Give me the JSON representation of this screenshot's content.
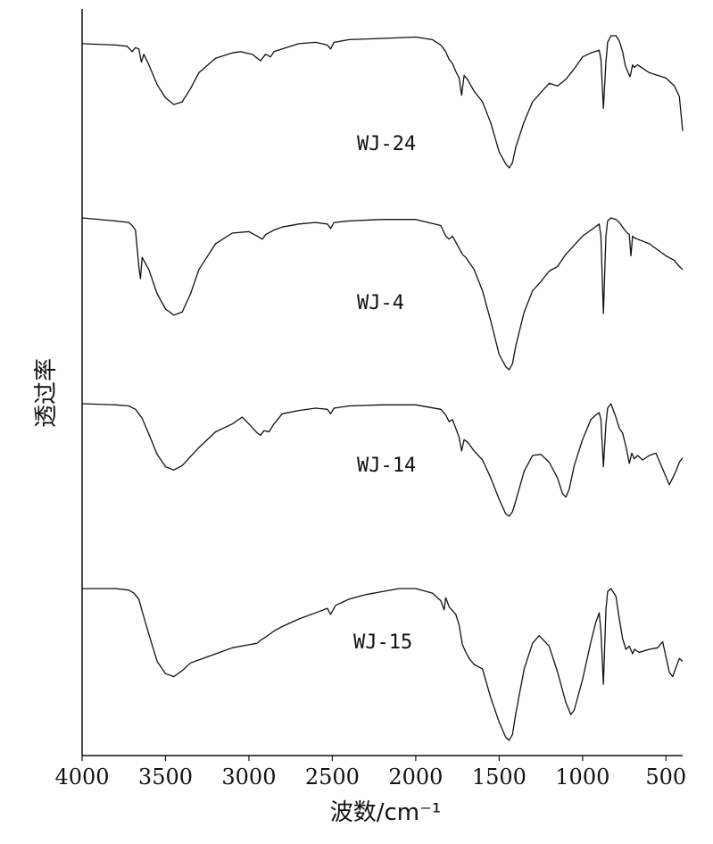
{
  "chart_data": {
    "type": "line",
    "title": "",
    "xlabel": "波数/cm⁻¹",
    "ylabel": "透过率",
    "xlim": [
      4000,
      400
    ],
    "x_reversed": true,
    "x_ticks": [
      4000,
      3500,
      3000,
      2500,
      2000,
      1500,
      1000,
      500
    ],
    "grid": false,
    "legend": "none",
    "series": [
      {
        "name": "WJ-24",
        "points": [
          [
            4000,
            0.06
          ],
          [
            3800,
            0.07
          ],
          [
            3730,
            0.08
          ],
          [
            3700,
            0.12
          ],
          [
            3680,
            0.09
          ],
          [
            3660,
            0.1
          ],
          [
            3645,
            0.2
          ],
          [
            3630,
            0.14
          ],
          [
            3600,
            0.22
          ],
          [
            3550,
            0.37
          ],
          [
            3500,
            0.47
          ],
          [
            3450,
            0.52
          ],
          [
            3400,
            0.5
          ],
          [
            3350,
            0.4
          ],
          [
            3300,
            0.28
          ],
          [
            3200,
            0.17
          ],
          [
            3100,
            0.13
          ],
          [
            3050,
            0.12
          ],
          [
            3020,
            0.13
          ],
          [
            2980,
            0.14
          ],
          [
            2950,
            0.17
          ],
          [
            2930,
            0.19
          ],
          [
            2900,
            0.14
          ],
          [
            2870,
            0.16
          ],
          [
            2850,
            0.12
          ],
          [
            2800,
            0.1
          ],
          [
            2700,
            0.06
          ],
          [
            2600,
            0.05
          ],
          [
            2530,
            0.07
          ],
          [
            2510,
            0.1
          ],
          [
            2490,
            0.05
          ],
          [
            2400,
            0.03
          ],
          [
            2200,
            0.02
          ],
          [
            2000,
            0.01
          ],
          [
            1900,
            0.03
          ],
          [
            1850,
            0.07
          ],
          [
            1820,
            0.12
          ],
          [
            1800,
            0.18
          ],
          [
            1780,
            0.21
          ],
          [
            1760,
            0.27
          ],
          [
            1740,
            0.32
          ],
          [
            1725,
            0.45
          ],
          [
            1710,
            0.3
          ],
          [
            1690,
            0.33
          ],
          [
            1650,
            0.42
          ],
          [
            1600,
            0.5
          ],
          [
            1550,
            0.66
          ],
          [
            1500,
            0.88
          ],
          [
            1460,
            0.97
          ],
          [
            1440,
            1.0
          ],
          [
            1420,
            0.96
          ],
          [
            1400,
            0.84
          ],
          [
            1350,
            0.65
          ],
          [
            1300,
            0.5
          ],
          [
            1250,
            0.43
          ],
          [
            1200,
            0.36
          ],
          [
            1150,
            0.38
          ],
          [
            1100,
            0.33
          ],
          [
            1050,
            0.25
          ],
          [
            1000,
            0.16
          ],
          [
            950,
            0.13
          ],
          [
            900,
            0.11
          ],
          [
            890,
            0.18
          ],
          [
            875,
            0.55
          ],
          [
            860,
            0.2
          ],
          [
            850,
            0.05
          ],
          [
            830,
            0.0
          ],
          [
            800,
            0.0
          ],
          [
            780,
            0.04
          ],
          [
            760,
            0.12
          ],
          [
            745,
            0.22
          ],
          [
            730,
            0.27
          ],
          [
            715,
            0.31
          ],
          [
            700,
            0.22
          ],
          [
            690,
            0.24
          ],
          [
            670,
            0.22
          ],
          [
            600,
            0.28
          ],
          [
            500,
            0.32
          ],
          [
            450,
            0.38
          ],
          [
            420,
            0.46
          ],
          [
            400,
            0.72
          ]
        ]
      },
      {
        "name": "WJ-4",
        "points": [
          [
            4000,
            0.0
          ],
          [
            3800,
            0.02
          ],
          [
            3720,
            0.03
          ],
          [
            3700,
            0.05
          ],
          [
            3680,
            0.08
          ],
          [
            3660,
            0.32
          ],
          [
            3650,
            0.4
          ],
          [
            3640,
            0.26
          ],
          [
            3600,
            0.34
          ],
          [
            3550,
            0.5
          ],
          [
            3500,
            0.6
          ],
          [
            3450,
            0.64
          ],
          [
            3400,
            0.62
          ],
          [
            3350,
            0.5
          ],
          [
            3300,
            0.34
          ],
          [
            3200,
            0.17
          ],
          [
            3100,
            0.1
          ],
          [
            3000,
            0.09
          ],
          [
            2950,
            0.12
          ],
          [
            2920,
            0.14
          ],
          [
            2900,
            0.11
          ],
          [
            2850,
            0.08
          ],
          [
            2800,
            0.06
          ],
          [
            2700,
            0.04
          ],
          [
            2600,
            0.03
          ],
          [
            2530,
            0.04
          ],
          [
            2510,
            0.07
          ],
          [
            2490,
            0.03
          ],
          [
            2400,
            0.02
          ],
          [
            2200,
            0.01
          ],
          [
            2000,
            0.01
          ],
          [
            1850,
            0.05
          ],
          [
            1820,
            0.12
          ],
          [
            1800,
            0.14
          ],
          [
            1780,
            0.12
          ],
          [
            1760,
            0.16
          ],
          [
            1720,
            0.24
          ],
          [
            1700,
            0.26
          ],
          [
            1650,
            0.34
          ],
          [
            1600,
            0.48
          ],
          [
            1550,
            0.68
          ],
          [
            1500,
            0.9
          ],
          [
            1460,
            0.98
          ],
          [
            1440,
            1.0
          ],
          [
            1420,
            0.96
          ],
          [
            1400,
            0.84
          ],
          [
            1350,
            0.62
          ],
          [
            1300,
            0.48
          ],
          [
            1250,
            0.42
          ],
          [
            1200,
            0.35
          ],
          [
            1150,
            0.32
          ],
          [
            1100,
            0.24
          ],
          [
            1050,
            0.18
          ],
          [
            1000,
            0.12
          ],
          [
            950,
            0.08
          ],
          [
            900,
            0.04
          ],
          [
            890,
            0.12
          ],
          [
            875,
            0.63
          ],
          [
            860,
            0.12
          ],
          [
            850,
            0.02
          ],
          [
            830,
            0.0
          ],
          [
            800,
            0.01
          ],
          [
            780,
            0.03
          ],
          [
            760,
            0.06
          ],
          [
            740,
            0.09
          ],
          [
            720,
            0.11
          ],
          [
            710,
            0.25
          ],
          [
            700,
            0.12
          ],
          [
            690,
            0.13
          ],
          [
            670,
            0.14
          ],
          [
            600,
            0.17
          ],
          [
            500,
            0.25
          ],
          [
            450,
            0.28
          ],
          [
            420,
            0.32
          ],
          [
            400,
            0.34
          ]
        ]
      },
      {
        "name": "WJ-14",
        "points": [
          [
            4000,
            0.0
          ],
          [
            3800,
            0.01
          ],
          [
            3720,
            0.02
          ],
          [
            3680,
            0.05
          ],
          [
            3640,
            0.13
          ],
          [
            3600,
            0.27
          ],
          [
            3550,
            0.45
          ],
          [
            3500,
            0.56
          ],
          [
            3450,
            0.59
          ],
          [
            3400,
            0.55
          ],
          [
            3350,
            0.47
          ],
          [
            3300,
            0.39
          ],
          [
            3200,
            0.25
          ],
          [
            3100,
            0.18
          ],
          [
            3060,
            0.14
          ],
          [
            3040,
            0.12
          ],
          [
            3000,
            0.18
          ],
          [
            2950,
            0.26
          ],
          [
            2930,
            0.28
          ],
          [
            2910,
            0.24
          ],
          [
            2880,
            0.25
          ],
          [
            2850,
            0.18
          ],
          [
            2800,
            0.09
          ],
          [
            2700,
            0.06
          ],
          [
            2600,
            0.04
          ],
          [
            2530,
            0.05
          ],
          [
            2510,
            0.09
          ],
          [
            2490,
            0.04
          ],
          [
            2400,
            0.02
          ],
          [
            2200,
            0.01
          ],
          [
            2000,
            0.01
          ],
          [
            1850,
            0.05
          ],
          [
            1820,
            0.1
          ],
          [
            1800,
            0.16
          ],
          [
            1780,
            0.14
          ],
          [
            1760,
            0.22
          ],
          [
            1740,
            0.3
          ],
          [
            1725,
            0.42
          ],
          [
            1710,
            0.32
          ],
          [
            1690,
            0.34
          ],
          [
            1650,
            0.42
          ],
          [
            1600,
            0.5
          ],
          [
            1550,
            0.66
          ],
          [
            1500,
            0.85
          ],
          [
            1460,
            0.98
          ],
          [
            1440,
            1.0
          ],
          [
            1420,
            0.96
          ],
          [
            1400,
            0.86
          ],
          [
            1350,
            0.6
          ],
          [
            1300,
            0.46
          ],
          [
            1250,
            0.45
          ],
          [
            1200,
            0.52
          ],
          [
            1150,
            0.66
          ],
          [
            1120,
            0.8
          ],
          [
            1100,
            0.83
          ],
          [
            1080,
            0.76
          ],
          [
            1050,
            0.55
          ],
          [
            1000,
            0.32
          ],
          [
            950,
            0.14
          ],
          [
            920,
            0.1
          ],
          [
            900,
            0.08
          ],
          [
            890,
            0.14
          ],
          [
            875,
            0.56
          ],
          [
            860,
            0.18
          ],
          [
            850,
            0.04
          ],
          [
            830,
            0.0
          ],
          [
            800,
            0.12
          ],
          [
            780,
            0.22
          ],
          [
            760,
            0.26
          ],
          [
            740,
            0.38
          ],
          [
            720,
            0.53
          ],
          [
            705,
            0.44
          ],
          [
            690,
            0.49
          ],
          [
            670,
            0.46
          ],
          [
            640,
            0.5
          ],
          [
            600,
            0.46
          ],
          [
            560,
            0.44
          ],
          [
            520,
            0.58
          ],
          [
            500,
            0.65
          ],
          [
            480,
            0.72
          ],
          [
            460,
            0.66
          ],
          [
            440,
            0.6
          ],
          [
            420,
            0.52
          ],
          [
            400,
            0.48
          ]
        ]
      },
      {
        "name": "WJ-15",
        "points": [
          [
            4000,
            0.0
          ],
          [
            3800,
            0.0
          ],
          [
            3720,
            0.01
          ],
          [
            3690,
            0.03
          ],
          [
            3660,
            0.07
          ],
          [
            3640,
            0.15
          ],
          [
            3600,
            0.3
          ],
          [
            3550,
            0.48
          ],
          [
            3500,
            0.56
          ],
          [
            3450,
            0.58
          ],
          [
            3400,
            0.54
          ],
          [
            3350,
            0.49
          ],
          [
            3300,
            0.47
          ],
          [
            3200,
            0.43
          ],
          [
            3100,
            0.39
          ],
          [
            3000,
            0.37
          ],
          [
            2950,
            0.36
          ],
          [
            2930,
            0.34
          ],
          [
            2900,
            0.32
          ],
          [
            2850,
            0.28
          ],
          [
            2800,
            0.25
          ],
          [
            2700,
            0.2
          ],
          [
            2600,
            0.16
          ],
          [
            2530,
            0.13
          ],
          [
            2510,
            0.17
          ],
          [
            2480,
            0.11
          ],
          [
            2400,
            0.07
          ],
          [
            2300,
            0.04
          ],
          [
            2200,
            0.02
          ],
          [
            2100,
            0.0
          ],
          [
            2000,
            0.0
          ],
          [
            1900,
            0.03
          ],
          [
            1850,
            0.08
          ],
          [
            1830,
            0.14
          ],
          [
            1820,
            0.06
          ],
          [
            1800,
            0.12
          ],
          [
            1760,
            0.17
          ],
          [
            1740,
            0.24
          ],
          [
            1720,
            0.37
          ],
          [
            1700,
            0.42
          ],
          [
            1680,
            0.46
          ],
          [
            1650,
            0.5
          ],
          [
            1600,
            0.53
          ],
          [
            1550,
            0.72
          ],
          [
            1500,
            0.88
          ],
          [
            1460,
            0.98
          ],
          [
            1440,
            1.0
          ],
          [
            1420,
            0.96
          ],
          [
            1400,
            0.82
          ],
          [
            1350,
            0.53
          ],
          [
            1300,
            0.36
          ],
          [
            1260,
            0.31
          ],
          [
            1200,
            0.38
          ],
          [
            1150,
            0.55
          ],
          [
            1100,
            0.75
          ],
          [
            1070,
            0.83
          ],
          [
            1050,
            0.8
          ],
          [
            1000,
            0.6
          ],
          [
            950,
            0.35
          ],
          [
            920,
            0.22
          ],
          [
            900,
            0.16
          ],
          [
            890,
            0.28
          ],
          [
            875,
            0.63
          ],
          [
            860,
            0.14
          ],
          [
            850,
            0.02
          ],
          [
            830,
            0.0
          ],
          [
            800,
            0.05
          ],
          [
            780,
            0.2
          ],
          [
            760,
            0.33
          ],
          [
            740,
            0.4
          ],
          [
            720,
            0.38
          ],
          [
            700,
            0.43
          ],
          [
            690,
            0.4
          ],
          [
            660,
            0.42
          ],
          [
            600,
            0.4
          ],
          [
            550,
            0.39
          ],
          [
            520,
            0.35
          ],
          [
            500,
            0.45
          ],
          [
            480,
            0.55
          ],
          [
            460,
            0.58
          ],
          [
            440,
            0.52
          ],
          [
            420,
            0.46
          ],
          [
            400,
            0.48
          ]
        ]
      }
    ]
  }
}
